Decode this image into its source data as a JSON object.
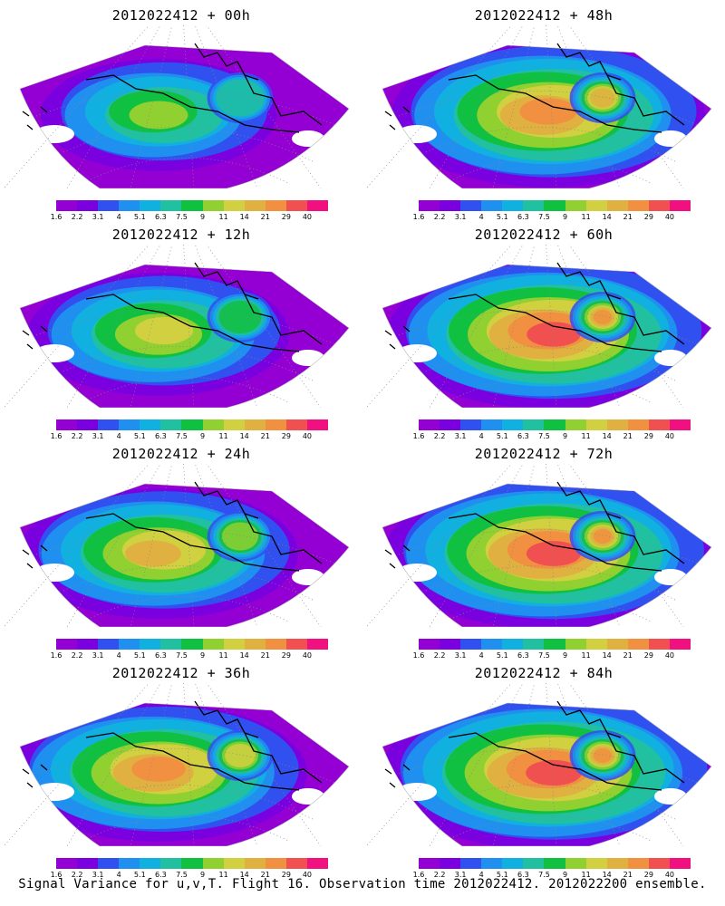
{
  "panels": [
    {
      "title": "2012022412 + 00h",
      "intensity": 0.35
    },
    {
      "title": "2012022412 + 48h",
      "intensity": 0.8
    },
    {
      "title": "2012022412 + 12h",
      "intensity": 0.5
    },
    {
      "title": "2012022412 + 60h",
      "intensity": 0.85
    },
    {
      "title": "2012022412 + 24h",
      "intensity": 0.6
    },
    {
      "title": "2012022412 + 72h",
      "intensity": 0.88
    },
    {
      "title": "2012022412 + 36h",
      "intensity": 0.7
    },
    {
      "title": "2012022412 + 84h",
      "intensity": 0.92
    }
  ],
  "colorbar": {
    "labels": [
      "1.6",
      "2.2",
      "3.1",
      "4",
      "5.1",
      "6.3",
      "7.5",
      "9",
      "11",
      "14",
      "21",
      "29",
      "40"
    ],
    "colors": [
      "#9400d3",
      "#7b00e0",
      "#3050f0",
      "#2090f0",
      "#10b0e0",
      "#20c0a0",
      "#10c040",
      "#90d030",
      "#d0d040",
      "#e0b040",
      "#f09040",
      "#f05050",
      "#f01080"
    ]
  },
  "footer": "Signal Variance for u,v,T. Flight 16. Observation time 2012022412. 2012022200 ensemble."
}
